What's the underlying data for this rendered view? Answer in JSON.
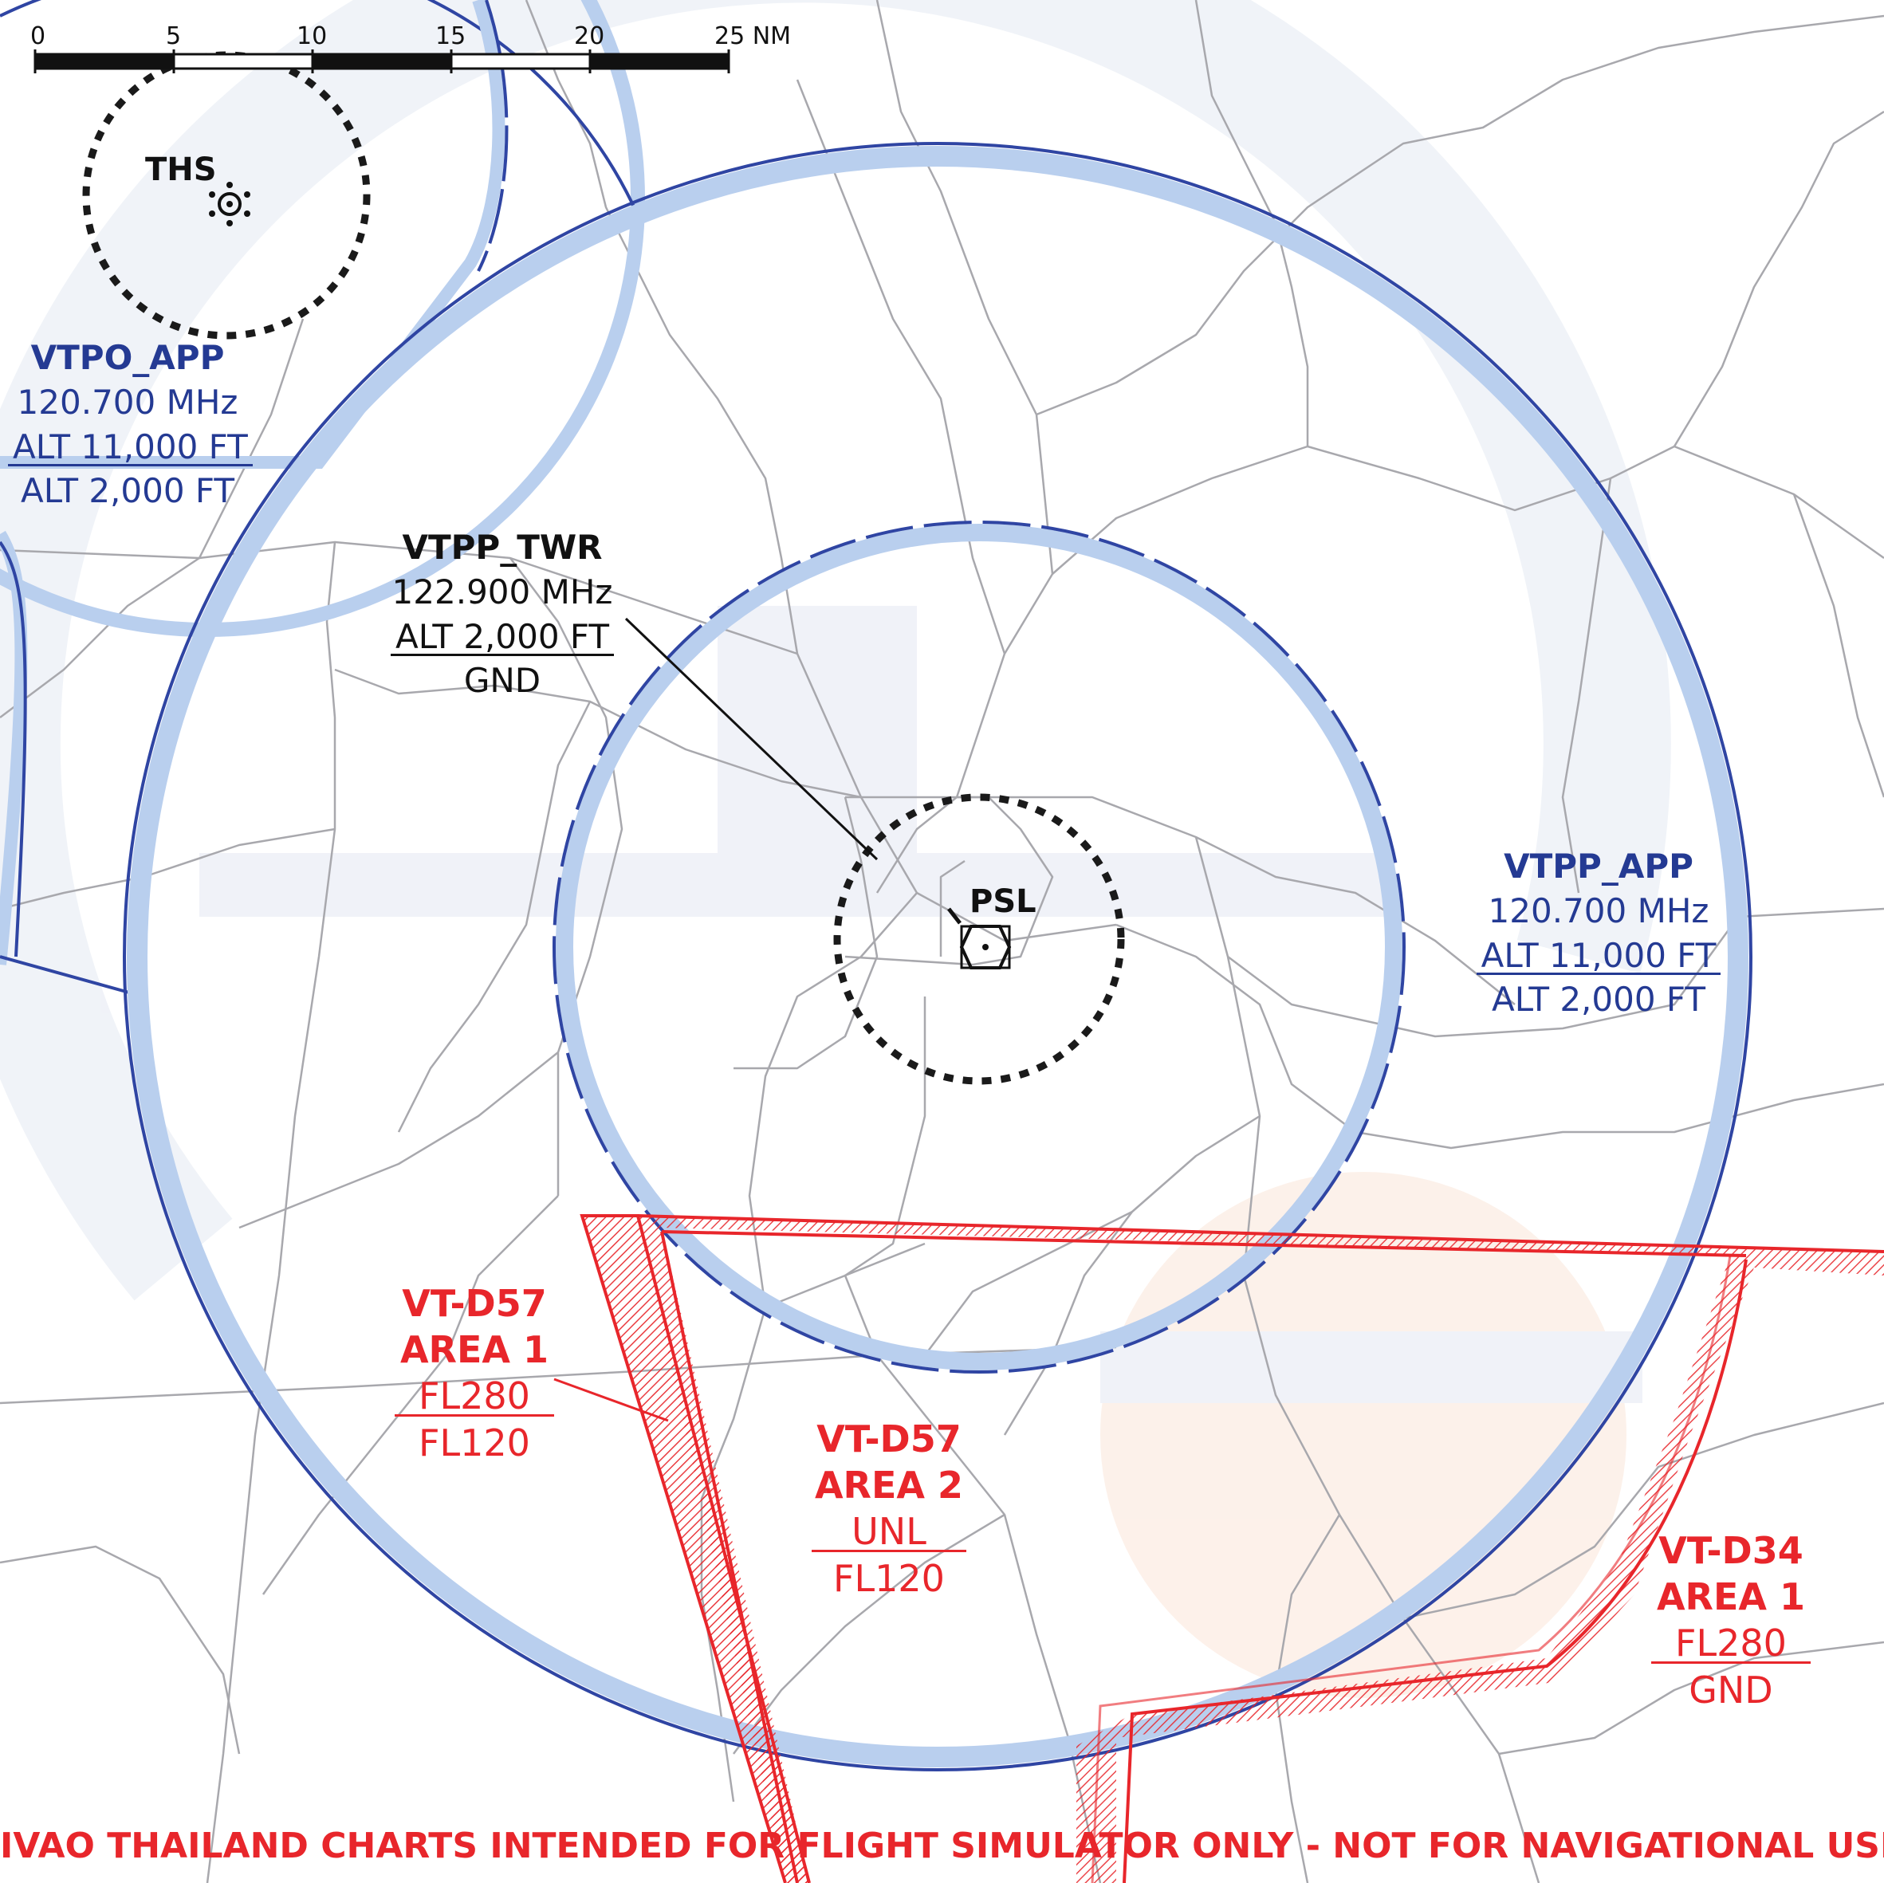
{
  "scale_bar": {
    "ticks": [
      "0",
      "5",
      "10",
      "15",
      "20",
      "25 NM"
    ]
  },
  "navaids": {
    "ths": "THS",
    "psl": "PSL"
  },
  "vtpo_app": {
    "name": "VTPO_APP",
    "freq": "120.700 MHz",
    "upper": "ALT 11,000 FT",
    "lower": "ALT 2,000 FT"
  },
  "vtpp_twr": {
    "name": "VTPP_TWR",
    "freq": "122.900 MHz",
    "upper": "ALT 2,000 FT",
    "lower": "GND"
  },
  "vtpp_app": {
    "name": "VTPP_APP",
    "freq": "120.700 MHz",
    "upper": "ALT 11,000 FT",
    "lower": "ALT 2,000 FT"
  },
  "d57_area1": {
    "name": "VT-D57",
    "area": "AREA 1",
    "upper": "FL280",
    "lower": "FL120"
  },
  "d57_area2": {
    "name": "VT-D57",
    "area": "AREA 2",
    "upper": "UNL",
    "lower": "FL120"
  },
  "d34_area1": {
    "name": "VT-D34",
    "area": "AREA 1",
    "upper": "FL280",
    "lower": "GND"
  },
  "footer": "IVAO THAILAND CHARTS INTENDED FOR FLIGHT SIMULATOR ONLY - NOT FOR NAVIGATIONAL USE",
  "colors": {
    "app_boundary": "#2f45a3",
    "app_halo": "#b9cfee",
    "restricted": "#e8262b",
    "roads": "#a8a8ad",
    "tower_ring": "#1a1a1a"
  }
}
